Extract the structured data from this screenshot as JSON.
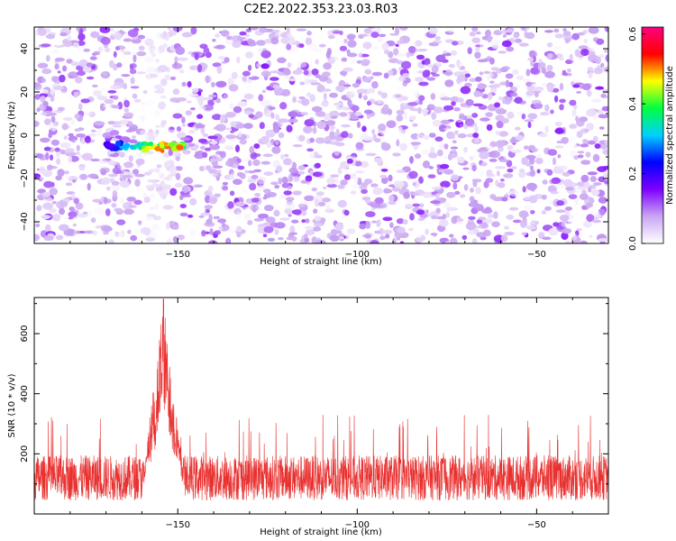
{
  "title": "C2E2.2022.353.23.03.R03",
  "chart_data": [
    {
      "type": "heatmap",
      "xlabel": "Height of straight line (km)",
      "ylabel": "Frequency (Hz)",
      "xlim": [
        -190,
        -30
      ],
      "ylim": [
        -50,
        50
      ],
      "xticks": [
        -150,
        -100,
        -50
      ],
      "yticks": [
        -40,
        -20,
        0,
        20,
        40
      ],
      "colorbar": {
        "label": "Normalized spectral amplitude",
        "range": [
          0.0,
          0.62
        ],
        "ticks": [
          0.0,
          0.2,
          0.4,
          0.6
        ],
        "colors": [
          "#ffffff",
          "#c9a6f2",
          "#7f00ff",
          "#0000ff",
          "#00d0ff",
          "#00ff40",
          "#ffff00",
          "#ff0000",
          "#ff0080"
        ]
      },
      "hotspot": {
        "x_range": [
          -170,
          -148
        ],
        "frequency": -5,
        "peak_value": 0.6
      },
      "quiet_band_x": [
        -160,
        -152
      ],
      "grid": false
    },
    {
      "type": "line",
      "xlabel": "Height of straight line (km)",
      "ylabel": "SNR (10 * v/v)",
      "xlim": [
        -190,
        -30
      ],
      "ylim": [
        0,
        720
      ],
      "xticks": [
        -150,
        -100,
        -50
      ],
      "yticks": [
        200,
        400,
        600
      ],
      "color": "#e8302f",
      "baseline": {
        "mean": 120,
        "spread": 75,
        "spike_max": 330
      },
      "peak": {
        "x": -154,
        "value": 715,
        "x_range": [
          -158,
          -150
        ]
      },
      "grid": false
    }
  ]
}
